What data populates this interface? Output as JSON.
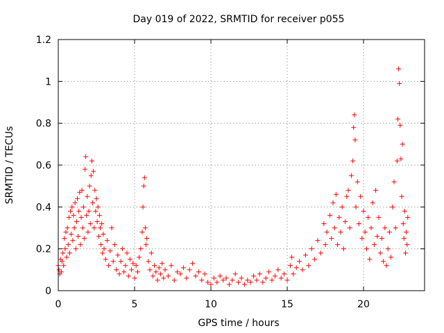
{
  "chart_data": {
    "type": "scatter",
    "title": "Day 019 of 2022, SRMTID for receiver p055",
    "xlabel": "GPS time / hours",
    "ylabel": "SRMTID / TECUs",
    "xlim": [
      0,
      24
    ],
    "ylim": [
      0,
      1.2
    ],
    "xticks": [
      0,
      5,
      10,
      15,
      20
    ],
    "xtick_labels": [
      "0",
      "5",
      "10",
      "15",
      "20"
    ],
    "yticks": [
      0,
      0.2,
      0.4,
      0.6,
      0.8,
      1.0,
      1.2
    ],
    "ytick_labels": [
      "0",
      "0.2",
      "0.4",
      "0.6",
      "0.8",
      "1",
      "1.2"
    ],
    "grid": true,
    "marker": "+",
    "color": "#ff0000",
    "series": [
      {
        "name": "SRMTID",
        "points": [
          [
            0.0,
            0.12
          ],
          [
            0.05,
            0.1
          ],
          [
            0.1,
            0.08
          ],
          [
            0.15,
            0.15
          ],
          [
            0.2,
            0.09
          ],
          [
            0.25,
            0.14
          ],
          [
            0.3,
            0.18
          ],
          [
            0.35,
            0.12
          ],
          [
            0.4,
            0.25
          ],
          [
            0.45,
            0.2
          ],
          [
            0.5,
            0.28
          ],
          [
            0.55,
            0.16
          ],
          [
            0.6,
            0.3
          ],
          [
            0.65,
            0.22
          ],
          [
            0.7,
            0.35
          ],
          [
            0.75,
            0.18
          ],
          [
            0.8,
            0.38
          ],
          [
            0.85,
            0.27
          ],
          [
            0.9,
            0.4
          ],
          [
            0.95,
            0.24
          ],
          [
            1.0,
            0.36
          ],
          [
            1.05,
            0.3
          ],
          [
            1.1,
            0.42
          ],
          [
            1.15,
            0.2
          ],
          [
            1.2,
            0.33
          ],
          [
            1.25,
            0.44
          ],
          [
            1.3,
            0.26
          ],
          [
            1.35,
            0.38
          ],
          [
            1.4,
            0.47
          ],
          [
            1.45,
            0.22
          ],
          [
            1.5,
            0.35
          ],
          [
            1.55,
            0.48
          ],
          [
            1.6,
            0.3
          ],
          [
            1.65,
            0.4
          ],
          [
            1.7,
            0.25
          ],
          [
            1.75,
            0.58
          ],
          [
            1.8,
            0.64
          ],
          [
            1.85,
            0.36
          ],
          [
            1.9,
            0.45
          ],
          [
            1.95,
            0.28
          ],
          [
            2.0,
            0.38
          ],
          [
            2.05,
            0.5
          ],
          [
            2.1,
            0.32
          ],
          [
            2.15,
            0.55
          ],
          [
            2.2,
            0.62
          ],
          [
            2.25,
            0.42
          ],
          [
            2.3,
            0.57
          ],
          [
            2.35,
            0.3
          ],
          [
            2.4,
            0.48
          ],
          [
            2.45,
            0.38
          ],
          [
            2.5,
            0.44
          ],
          [
            2.55,
            0.33
          ],
          [
            2.6,
            0.4
          ],
          [
            2.65,
            0.26
          ],
          [
            2.7,
            0.36
          ],
          [
            2.75,
            0.3
          ],
          [
            2.8,
            0.22
          ],
          [
            2.85,
            0.32
          ],
          [
            2.9,
            0.18
          ],
          [
            2.95,
            0.27
          ],
          [
            3.0,
            0.2
          ],
          [
            3.1,
            0.15
          ],
          [
            3.2,
            0.24
          ],
          [
            3.3,
            0.12
          ],
          [
            3.4,
            0.19
          ],
          [
            3.5,
            0.3
          ],
          [
            3.6,
            0.14
          ],
          [
            3.7,
            0.22
          ],
          [
            3.8,
            0.1
          ],
          [
            3.9,
            0.17
          ],
          [
            4.0,
            0.08
          ],
          [
            4.1,
            0.14
          ],
          [
            4.2,
            0.2
          ],
          [
            4.3,
            0.09
          ],
          [
            4.4,
            0.12
          ],
          [
            4.5,
            0.18
          ],
          [
            4.6,
            0.07
          ],
          [
            4.7,
            0.15
          ],
          [
            4.8,
            0.1
          ],
          [
            4.9,
            0.13
          ],
          [
            5.0,
            0.06
          ],
          [
            5.1,
            0.12
          ],
          [
            5.2,
            0.09
          ],
          [
            5.3,
            0.16
          ],
          [
            5.4,
            0.2
          ],
          [
            5.5,
            0.28
          ],
          [
            5.55,
            0.4
          ],
          [
            5.6,
            0.5
          ],
          [
            5.65,
            0.54
          ],
          [
            5.7,
            0.3
          ],
          [
            5.75,
            0.22
          ],
          [
            5.8,
            0.25
          ],
          [
            5.9,
            0.14
          ],
          [
            6.0,
            0.1
          ],
          [
            6.1,
            0.18
          ],
          [
            6.2,
            0.07
          ],
          [
            6.3,
            0.12
          ],
          [
            6.4,
            0.09
          ],
          [
            6.5,
            0.05
          ],
          [
            6.6,
            0.11
          ],
          [
            6.7,
            0.08
          ],
          [
            6.8,
            0.13
          ],
          [
            6.9,
            0.06
          ],
          [
            7.0,
            0.1
          ],
          [
            7.2,
            0.07
          ],
          [
            7.4,
            0.12
          ],
          [
            7.6,
            0.05
          ],
          [
            7.8,
            0.09
          ],
          [
            8.0,
            0.08
          ],
          [
            8.2,
            0.11
          ],
          [
            8.4,
            0.06
          ],
          [
            8.6,
            0.1
          ],
          [
            8.8,
            0.13
          ],
          [
            9.0,
            0.07
          ],
          [
            9.2,
            0.09
          ],
          [
            9.4,
            0.05
          ],
          [
            9.6,
            0.08
          ],
          [
            9.8,
            0.04
          ],
          [
            10.0,
            0.03
          ],
          [
            10.2,
            0.06
          ],
          [
            10.4,
            0.04
          ],
          [
            10.6,
            0.07
          ],
          [
            10.8,
            0.05
          ],
          [
            11.0,
            0.06
          ],
          [
            11.2,
            0.03
          ],
          [
            11.4,
            0.05
          ],
          [
            11.6,
            0.08
          ],
          [
            11.8,
            0.04
          ],
          [
            12.0,
            0.06
          ],
          [
            12.2,
            0.03
          ],
          [
            12.4,
            0.05
          ],
          [
            12.6,
            0.04
          ],
          [
            12.8,
            0.07
          ],
          [
            13.0,
            0.05
          ],
          [
            13.2,
            0.08
          ],
          [
            13.4,
            0.04
          ],
          [
            13.6,
            0.06
          ],
          [
            13.8,
            0.09
          ],
          [
            14.0,
            0.05
          ],
          [
            14.2,
            0.07
          ],
          [
            14.4,
            0.1
          ],
          [
            14.6,
            0.06
          ],
          [
            14.8,
            0.08
          ],
          [
            15.0,
            0.05
          ],
          [
            15.2,
            0.12
          ],
          [
            15.3,
            0.16
          ],
          [
            15.4,
            0.08
          ],
          [
            15.6,
            0.11
          ],
          [
            15.8,
            0.14
          ],
          [
            16.0,
            0.1
          ],
          [
            16.2,
            0.17
          ],
          [
            16.4,
            0.12
          ],
          [
            16.6,
            0.2
          ],
          [
            16.8,
            0.15
          ],
          [
            17.0,
            0.24
          ],
          [
            17.2,
            0.18
          ],
          [
            17.4,
            0.32
          ],
          [
            17.5,
            0.22
          ],
          [
            17.6,
            0.28
          ],
          [
            17.8,
            0.36
          ],
          [
            17.9,
            0.25
          ],
          [
            18.0,
            0.42
          ],
          [
            18.1,
            0.3
          ],
          [
            18.2,
            0.46
          ],
          [
            18.3,
            0.22
          ],
          [
            18.4,
            0.35
          ],
          [
            18.5,
            0.28
          ],
          [
            18.6,
            0.4
          ],
          [
            18.7,
            0.2
          ],
          [
            18.8,
            0.33
          ],
          [
            18.9,
            0.45
          ],
          [
            19.0,
            0.48
          ],
          [
            19.1,
            0.3
          ],
          [
            19.2,
            0.55
          ],
          [
            19.3,
            0.62
          ],
          [
            19.35,
            0.78
          ],
          [
            19.4,
            0.84
          ],
          [
            19.45,
            0.72
          ],
          [
            19.5,
            0.4
          ],
          [
            19.6,
            0.52
          ],
          [
            19.7,
            0.32
          ],
          [
            19.8,
            0.45
          ],
          [
            19.9,
            0.25
          ],
          [
            20.0,
            0.38
          ],
          [
            20.1,
            0.28
          ],
          [
            20.2,
            0.2
          ],
          [
            20.3,
            0.35
          ],
          [
            20.4,
            0.15
          ],
          [
            20.5,
            0.3
          ],
          [
            20.6,
            0.42
          ],
          [
            20.7,
            0.22
          ],
          [
            20.8,
            0.48
          ],
          [
            20.9,
            0.26
          ],
          [
            21.0,
            0.35
          ],
          [
            21.1,
            0.18
          ],
          [
            21.2,
            0.25
          ],
          [
            21.3,
            0.14
          ],
          [
            21.4,
            0.3
          ],
          [
            21.5,
            0.12
          ],
          [
            21.6,
            0.2
          ],
          [
            21.7,
            0.28
          ],
          [
            21.8,
            0.16
          ],
          [
            21.9,
            0.4
          ],
          [
            22.0,
            0.52
          ],
          [
            22.1,
            0.3
          ],
          [
            22.2,
            0.62
          ],
          [
            22.25,
            0.82
          ],
          [
            22.3,
            1.06
          ],
          [
            22.35,
            0.99
          ],
          [
            22.4,
            0.79
          ],
          [
            22.45,
            0.63
          ],
          [
            22.5,
            0.45
          ],
          [
            22.55,
            0.7
          ],
          [
            22.6,
            0.32
          ],
          [
            22.65,
            0.25
          ],
          [
            22.7,
            0.38
          ],
          [
            22.75,
            0.18
          ],
          [
            22.8,
            0.28
          ],
          [
            22.85,
            0.22
          ],
          [
            22.9,
            0.35
          ]
        ]
      }
    ]
  }
}
